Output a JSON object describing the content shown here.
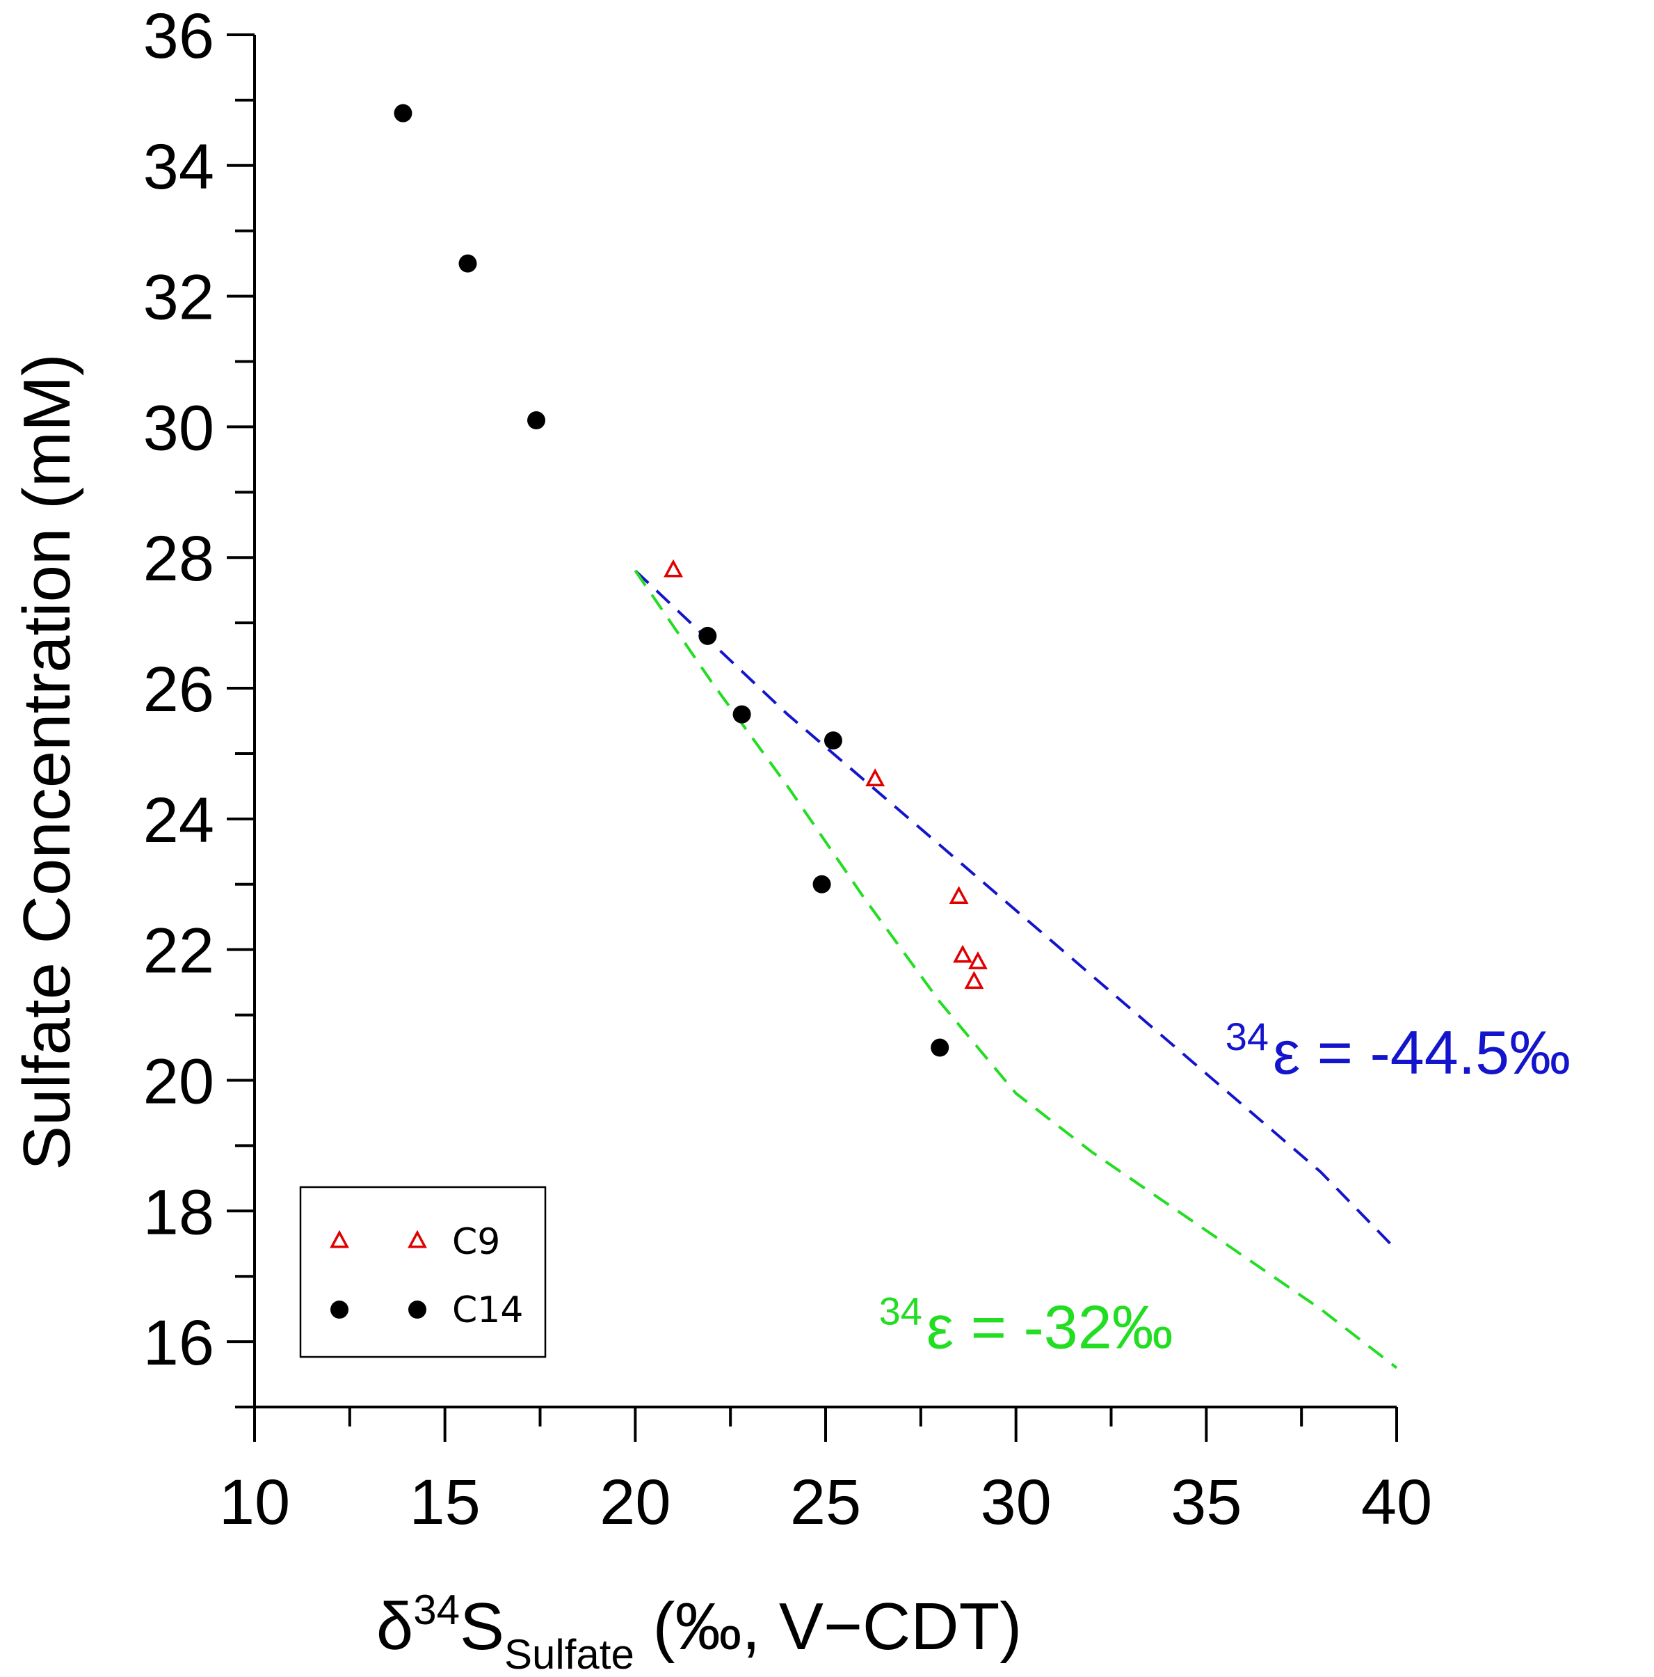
{
  "chart_data": {
    "type": "scatter",
    "xlabel": {
      "main": "δ",
      "sup": "34",
      "s": "S",
      "sub": "Sulfate",
      "units": "(‰, V−CDT)"
    },
    "ylabel": "Sulfate Concentration (mM)",
    "xlim": [
      10,
      40
    ],
    "ylim": [
      15,
      36
    ],
    "xticks": [
      10,
      15,
      20,
      25,
      30,
      35,
      40
    ],
    "yticks": [
      16,
      18,
      20,
      22,
      24,
      26,
      28,
      30,
      32,
      34,
      36
    ],
    "series": [
      {
        "name": "C9",
        "marker": "triangle-open",
        "color": "#e00000",
        "x": [
          21.0,
          26.3,
          28.5,
          28.6,
          29.0,
          28.9
        ],
        "y": [
          27.8,
          24.6,
          22.8,
          21.9,
          21.8,
          21.5
        ]
      },
      {
        "name": "C14",
        "marker": "circle-filled",
        "color": "#000000",
        "x": [
          13.9,
          15.6,
          17.4,
          21.9,
          22.8,
          25.2,
          24.9,
          28.0
        ],
        "y": [
          34.8,
          32.5,
          30.1,
          26.8,
          25.6,
          25.2,
          23.0,
          20.5
        ]
      }
    ],
    "fit_lines": [
      {
        "color": "#1414cc",
        "style": "dashed",
        "x": [
          20.0,
          22.0,
          24.0,
          26.0,
          28.0,
          30.0,
          32.0,
          34.0,
          36.0,
          38.0,
          40.0
        ],
        "y": [
          27.8,
          26.7,
          25.6,
          24.6,
          23.6,
          22.6,
          21.6,
          20.6,
          19.6,
          18.6,
          17.4
        ],
        "label_sup": "34",
        "label_main": "ε = -44.5‰",
        "label_anchor": [
          35.5,
          20.1
        ]
      },
      {
        "color": "#22dd22",
        "style": "dashed",
        "x": [
          20.0,
          22.0,
          24.0,
          26.0,
          28.0,
          30.0,
          32.0,
          34.0,
          36.0,
          38.0,
          40.0
        ],
        "y": [
          27.8,
          26.1,
          24.5,
          22.8,
          21.2,
          19.8,
          18.9,
          18.1,
          17.3,
          16.5,
          15.6
        ],
        "label_sup": "34",
        "label_main": "ε = -32‰",
        "label_anchor": [
          26.4,
          15.9
        ]
      }
    ],
    "legend": {
      "position": "bottom-left",
      "entries": [
        "C9",
        "C14"
      ]
    },
    "grid": false
  }
}
